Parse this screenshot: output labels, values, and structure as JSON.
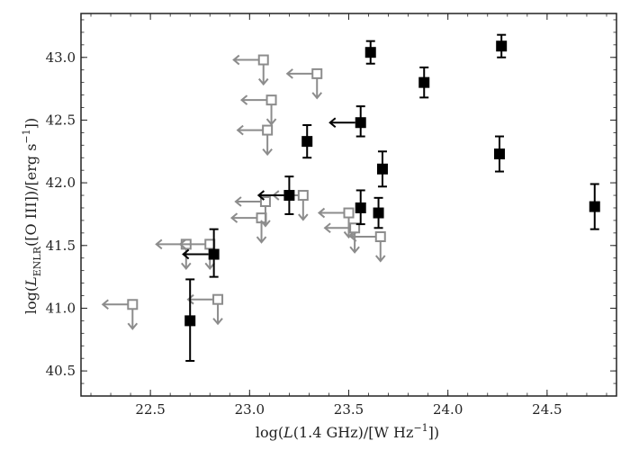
{
  "chart_data": {
    "type": "scatter",
    "xlabel": "log(L(1.4 GHz)/[W Hz^-1])",
    "ylabel": "log(L_ENLR([O III])/[erg s^-1])",
    "xlim": [
      22.15,
      24.85
    ],
    "ylim": [
      40.3,
      43.35
    ],
    "xticks": [
      22.5,
      23.0,
      23.5,
      24.0,
      24.5
    ],
    "xtick_labels": [
      "22.5",
      "23.0",
      "23.5",
      "24.0",
      "24.5"
    ],
    "yticks": [
      40.5,
      41.0,
      41.5,
      42.0,
      42.5,
      43.0
    ],
    "ytick_labels": [
      "40.5",
      "41.0",
      "41.5",
      "42.0",
      "42.5",
      "43.0"
    ],
    "grid": false,
    "colors": {
      "detection": "#000000",
      "limit": "#8c8c8c",
      "axis": "#222222"
    },
    "series": [
      {
        "marker": "filled-square",
        "points": [
          {
            "x": 22.7,
            "y": 40.9,
            "err_lo": 0.32,
            "err_hi": 0.33
          },
          {
            "x": 22.82,
            "y": 41.43,
            "err_lo": 0.18,
            "err_hi": 0.2,
            "x_upper_limit": true
          },
          {
            "x": 23.2,
            "y": 41.9,
            "err_lo": 0.15,
            "err_hi": 0.15,
            "x_upper_limit": true
          },
          {
            "x": 23.29,
            "y": 42.33,
            "err_lo": 0.13,
            "err_hi": 0.13
          },
          {
            "x": 23.56,
            "y": 42.48,
            "err_lo": 0.11,
            "err_hi": 0.13,
            "x_upper_limit": true
          },
          {
            "x": 23.56,
            "y": 41.8,
            "err_lo": 0.13,
            "err_hi": 0.14
          },
          {
            "x": 23.61,
            "y": 43.04,
            "err_lo": 0.09,
            "err_hi": 0.09
          },
          {
            "x": 23.65,
            "y": 41.76,
            "err_lo": 0.12,
            "err_hi": 0.12
          },
          {
            "x": 23.67,
            "y": 42.11,
            "err_lo": 0.14,
            "err_hi": 0.14
          },
          {
            "x": 23.88,
            "y": 42.8,
            "err_lo": 0.12,
            "err_hi": 0.12
          },
          {
            "x": 24.26,
            "y": 42.23,
            "err_lo": 0.14,
            "err_hi": 0.14
          },
          {
            "x": 24.27,
            "y": 43.09,
            "err_lo": 0.09,
            "err_hi": 0.09
          },
          {
            "x": 24.74,
            "y": 41.81,
            "err_lo": 0.18,
            "err_hi": 0.18
          }
        ]
      },
      {
        "marker": "open-square",
        "upper_limit_both": true,
        "points": [
          {
            "x": 22.41,
            "y": 41.03
          },
          {
            "x": 22.68,
            "y": 41.51
          },
          {
            "x": 22.8,
            "y": 41.51
          },
          {
            "x": 22.84,
            "y": 41.07
          },
          {
            "x": 23.06,
            "y": 41.72
          },
          {
            "x": 23.08,
            "y": 41.85
          },
          {
            "x": 23.09,
            "y": 42.42
          },
          {
            "x": 23.11,
            "y": 42.66
          },
          {
            "x": 23.07,
            "y": 42.98
          },
          {
            "x": 23.27,
            "y": 41.9
          },
          {
            "x": 23.34,
            "y": 42.87
          },
          {
            "x": 23.5,
            "y": 41.76
          },
          {
            "x": 23.53,
            "y": 41.64
          },
          {
            "x": 23.66,
            "y": 41.57
          }
        ]
      }
    ]
  }
}
